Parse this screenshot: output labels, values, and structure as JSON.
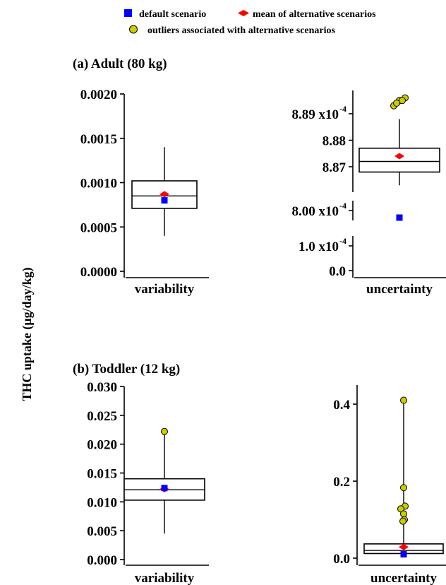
{
  "legend": {
    "default": "default scenario",
    "mean": "mean of alternative scenarios",
    "outliers": "outliers associated with alternative scenarios",
    "colors": {
      "default": "#0000ff",
      "mean": "#ff0000",
      "outlier": "#cccc00"
    }
  },
  "ylabel": "THC uptake (μg/day/kg)",
  "chart_data": [
    {
      "type": "box",
      "panel": "a",
      "title": "(a) Adult (80 kg)",
      "xlabel": "variability",
      "ylim": [
        0,
        0.002
      ],
      "yticks": [
        "0.0000",
        "0.0005",
        "0.0010",
        "0.0015",
        "0.0020"
      ],
      "box": {
        "whisker_low": 0.0004,
        "q1": 0.00071,
        "median": 0.00085,
        "q3": 0.00102,
        "whisker_high": 0.0014
      },
      "mean": 0.00087,
      "default": 0.0008,
      "outliers": []
    },
    {
      "type": "box",
      "panel": "a",
      "xlabel": "uncertainty",
      "axis_break": true,
      "yticks_upper": [
        "8.87",
        "8.88",
        "8.89 x10"
      ],
      "ytick_exponent": "-4",
      "yticks_lower": [
        "0.0",
        "1.0 x10",
        "8.00 x10"
      ],
      "box": {
        "whisker_low": 0.0008863,
        "q1": 0.0008868,
        "median": 0.0008872,
        "q3": 0.0008877,
        "whisker_high": 0.0008888
      },
      "mean": 0.0008874,
      "default": 0.00078,
      "outliers": [
        0.0008893,
        0.0008895,
        0.0008896,
        0.0008894,
        0.0008895
      ]
    },
    {
      "type": "box",
      "panel": "b",
      "title": "(b) Toddler (12 kg)",
      "xlabel": "variability",
      "ylim": [
        0,
        0.03
      ],
      "yticks": [
        "0.000",
        "0.005",
        "0.010",
        "0.015",
        "0.020",
        "0.025",
        "0.030"
      ],
      "box": {
        "whisker_low": 0.0045,
        "q1": 0.0103,
        "median": 0.0121,
        "q3": 0.014,
        "whisker_high": 0.0219
      },
      "mean": 0.0122,
      "default": 0.0124,
      "outliers": [
        0.0222
      ]
    },
    {
      "type": "box",
      "panel": "b",
      "xlabel": "uncertainty",
      "ylim": [
        0,
        0.45
      ],
      "yticks": [
        "0.0",
        "0.2",
        "0.4"
      ],
      "box": {
        "whisker_low": 0.005,
        "q1": 0.012,
        "median": 0.02,
        "q3": 0.037,
        "whisker_high": 0.41
      },
      "mean": 0.029,
      "default": 0.01,
      "outliers": [
        0.41,
        0.183,
        0.135,
        0.128,
        0.115,
        0.1,
        0.096
      ]
    }
  ]
}
